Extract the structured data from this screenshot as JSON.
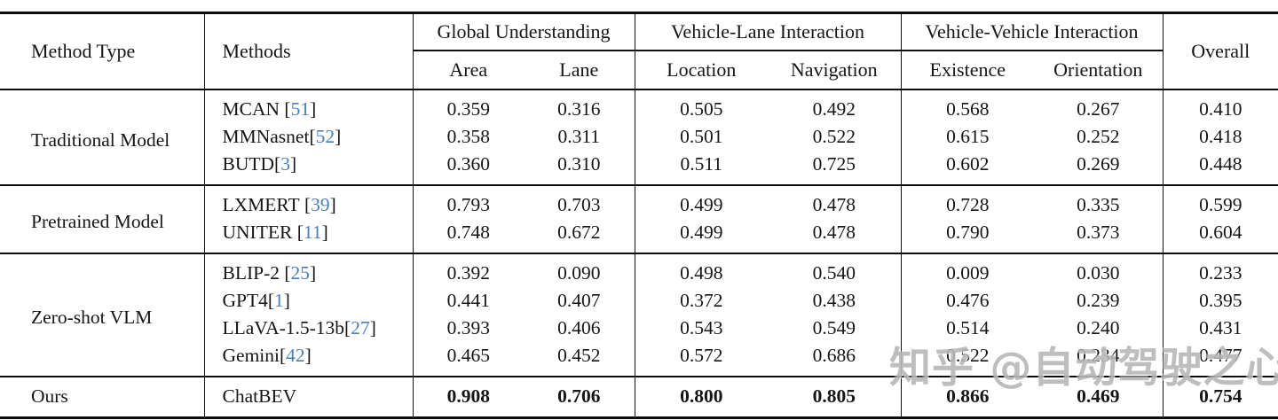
{
  "table": {
    "header": {
      "method_type": "Method Type",
      "methods": "Methods",
      "groups": [
        {
          "label": "Global Understanding",
          "subs": [
            "Area",
            "Lane"
          ]
        },
        {
          "label": "Vehicle-Lane Interaction",
          "subs": [
            "Location",
            "Navigation"
          ]
        },
        {
          "label": "Vehicle-Vehicle Interaction",
          "subs": [
            "Existence",
            "Orientation"
          ]
        }
      ],
      "overall": "Overall"
    },
    "sections": [
      {
        "type": "Traditional Model",
        "rows": [
          {
            "method": "MCAN",
            "cite": "51",
            "space_before_cite": true,
            "bold": false,
            "values": [
              "0.359",
              "0.316",
              "0.505",
              "0.492",
              "0.568",
              "0.267",
              "0.410"
            ]
          },
          {
            "method": "MMNasnet",
            "cite": "52",
            "space_before_cite": false,
            "bold": false,
            "values": [
              "0.358",
              "0.311",
              "0.501",
              "0.522",
              "0.615",
              "0.252",
              "0.418"
            ]
          },
          {
            "method": "BUTD",
            "cite": "3",
            "space_before_cite": false,
            "bold": false,
            "values": [
              "0.360",
              "0.310",
              "0.511",
              "0.725",
              "0.602",
              "0.269",
              "0.448"
            ]
          }
        ]
      },
      {
        "type": "Pretrained Model",
        "rows": [
          {
            "method": "LXMERT",
            "cite": "39",
            "space_before_cite": true,
            "bold": false,
            "values": [
              "0.793",
              "0.703",
              "0.499",
              "0.478",
              "0.728",
              "0.335",
              "0.599"
            ]
          },
          {
            "method": "UNITER",
            "cite": "11",
            "space_before_cite": true,
            "bold": false,
            "values": [
              "0.748",
              "0.672",
              "0.499",
              "0.478",
              "0.790",
              "0.373",
              "0.604"
            ]
          }
        ]
      },
      {
        "type": "Zero-shot VLM",
        "rows": [
          {
            "method": "BLIP-2",
            "cite": "25",
            "space_before_cite": true,
            "bold": false,
            "values": [
              "0.392",
              "0.090",
              "0.498",
              "0.540",
              "0.009",
              "0.030",
              "0.233"
            ]
          },
          {
            "method": "GPT4",
            "cite": "1",
            "space_before_cite": false,
            "bold": false,
            "values": [
              "0.441",
              "0.407",
              "0.372",
              "0.438",
              "0.476",
              "0.239",
              "0.395"
            ]
          },
          {
            "method": "LLaVA-1.5-13b",
            "cite": "27",
            "space_before_cite": false,
            "bold": false,
            "values": [
              "0.393",
              "0.406",
              "0.543",
              "0.549",
              "0.514",
              "0.240",
              "0.431"
            ]
          },
          {
            "method": "Gemini",
            "cite": "42",
            "space_before_cite": false,
            "bold": false,
            "values": [
              "0.465",
              "0.452",
              "0.572",
              "0.686",
              "0.522",
              "0.234",
              "0.477"
            ]
          }
        ]
      },
      {
        "type": "Ours",
        "rows": [
          {
            "method": "ChatBEV",
            "cite": null,
            "space_before_cite": false,
            "bold": true,
            "values": [
              "0.908",
              "0.706",
              "0.800",
              "0.805",
              "0.866",
              "0.469",
              "0.754"
            ]
          }
        ]
      }
    ]
  },
  "watermark": {
    "text": "知乎 @自动驾驶之心"
  },
  "colors": {
    "cite_blue": "#4a80ba",
    "rule_black": "#0c0c0c"
  }
}
